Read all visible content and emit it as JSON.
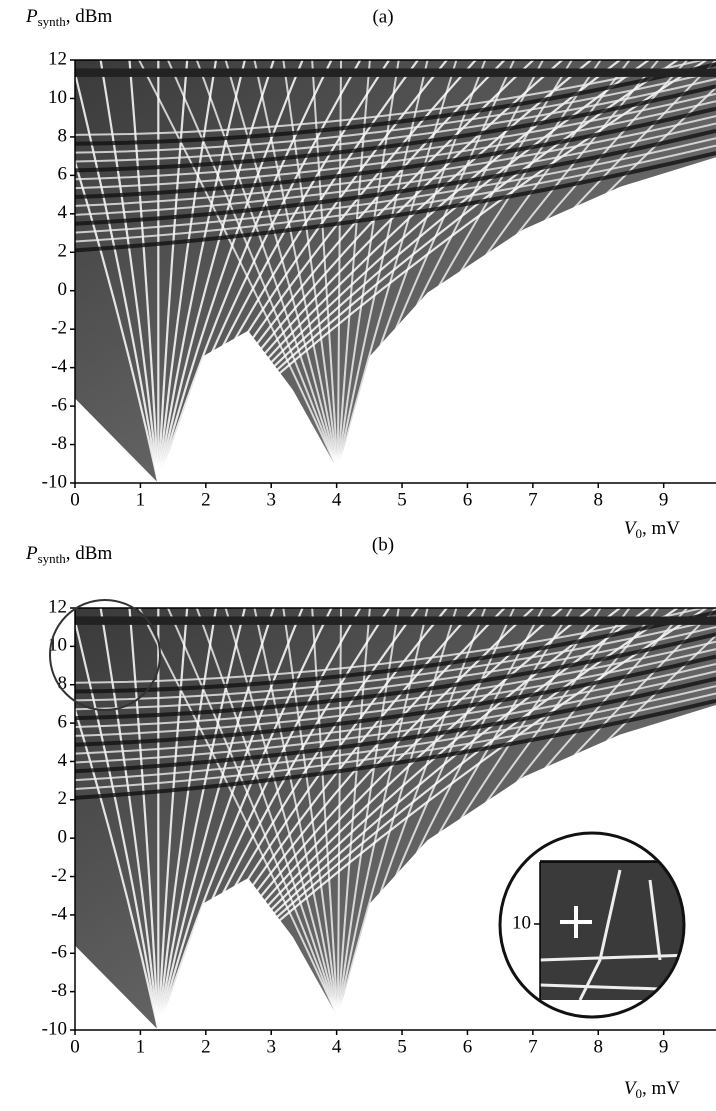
{
  "chart_data": [
    {
      "type": "heatmap",
      "title": "(a)",
      "ylabel": {
        "symbol": "P",
        "subscript": "synth",
        "unit": ", dBm"
      },
      "xlabel": {
        "symbol": "V",
        "subscript": "0",
        "unit": ", mV"
      },
      "xlim": [
        0,
        9.8
      ],
      "xticks": [
        0,
        1,
        2,
        3,
        4,
        5,
        6,
        7,
        8,
        9
      ],
      "ylim": [
        -10,
        12
      ],
      "yticks": [
        -10,
        -8,
        -6,
        -4,
        -2,
        0,
        2,
        4,
        6,
        8,
        10,
        12
      ]
    },
    {
      "type": "heatmap",
      "title": "(b)",
      "ylabel": {
        "symbol": "P",
        "subscript": "synth",
        "unit": ", dBm"
      },
      "xlabel": {
        "symbol": "V",
        "subscript": "0",
        "unit": ", mV"
      },
      "xlim": [
        0,
        9.8
      ],
      "xticks": [
        0,
        1,
        2,
        3,
        4,
        5,
        6,
        7,
        8,
        9
      ],
      "ylim": [
        -10,
        12
      ],
      "yticks": [
        -10,
        -8,
        -6,
        -4,
        -2,
        0,
        2,
        4,
        6,
        8,
        10,
        12
      ],
      "inset": {
        "yticks": [
          10
        ]
      }
    }
  ]
}
